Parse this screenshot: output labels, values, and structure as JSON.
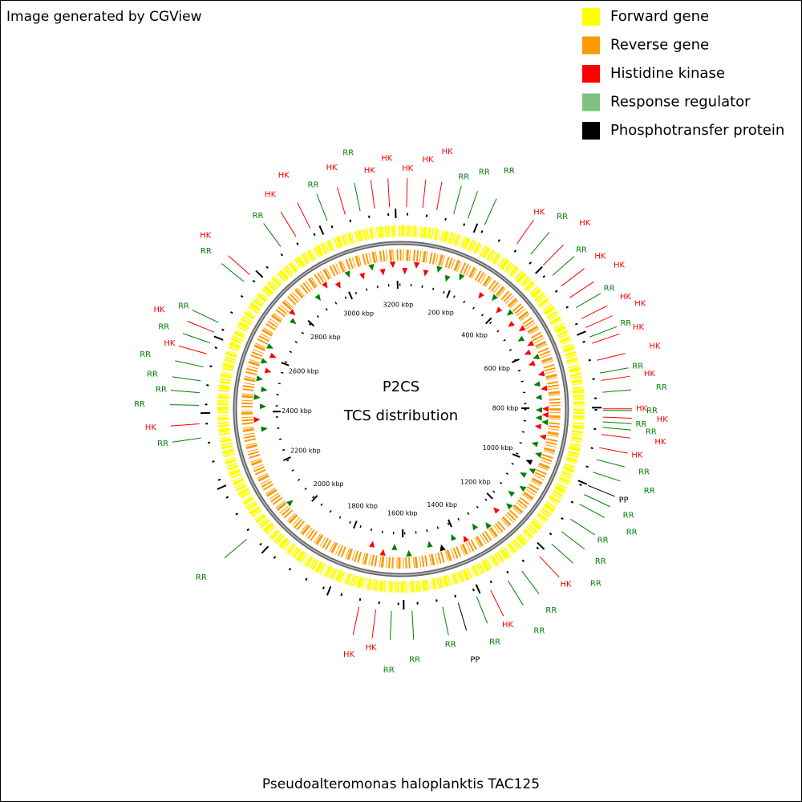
{
  "header": {
    "text": "Image generated by CGView"
  },
  "legend": [
    {
      "label": "Forward gene",
      "color": "#ffff00"
    },
    {
      "label": "Reverse gene",
      "color": "#ff9900"
    },
    {
      "label": "Histidine kinase",
      "color": "#ff0000"
    },
    {
      "label": "Response regulator",
      "color": "#80c080"
    },
    {
      "label": "Phosphotransfer protein",
      "color": "#000000"
    }
  ],
  "center": {
    "title": "P2CS",
    "subtitle": "TCS distribution"
  },
  "footer": "Pseudoalteromonas haloplanktis TAC125",
  "axis": {
    "lim": [
      0,
      3214
    ],
    "ticks": [
      {
        "value": 200,
        "label": "200 kbp"
      },
      {
        "value": 400,
        "label": "400 kbp"
      },
      {
        "value": 600,
        "label": "600 kbp"
      },
      {
        "value": 800,
        "label": "800 kbp"
      },
      {
        "value": 1000,
        "label": "1000 kbp"
      },
      {
        "value": 1200,
        "label": "1200 kbp"
      },
      {
        "value": 1400,
        "label": "1400 kbp"
      },
      {
        "value": 1600,
        "label": "1600 kbp"
      },
      {
        "value": 1800,
        "label": "1800 kbp"
      },
      {
        "value": 2000,
        "label": "2000 kbp"
      },
      {
        "value": 2200,
        "label": "2200 kbp"
      },
      {
        "value": 2400,
        "label": "2400 kbp"
      },
      {
        "value": 2600,
        "label": "2600 kbp"
      },
      {
        "value": 2800,
        "label": "2800 kbp"
      },
      {
        "value": 3000,
        "label": "3000 kbp"
      },
      {
        "value": 3200,
        "label": "3200 kbp"
      }
    ]
  },
  "feature_colors": {
    "HK": "#ff0000",
    "RR": "#008000",
    "PP": "#000000"
  },
  "features": [
    {
      "label": "HK",
      "position": 14
    },
    {
      "label": "HK",
      "position": 55
    },
    {
      "label": "HK",
      "position": 91
    },
    {
      "label": "RR",
      "position": 135
    },
    {
      "label": "RR",
      "position": 173
    },
    {
      "label": "RR",
      "position": 218
    },
    {
      "label": "HK",
      "position": 313
    },
    {
      "label": "RR",
      "position": 357
    },
    {
      "label": "HK",
      "position": 399
    },
    {
      "label": "RR",
      "position": 434
    },
    {
      "label": "HK",
      "position": 469
    },
    {
      "label": "HK",
      "position": 505
    },
    {
      "label": "RR",
      "position": 535
    },
    {
      "label": "HK",
      "position": 566
    },
    {
      "label": "HK",
      "position": 591
    },
    {
      "label": "RR",
      "position": 617
    },
    {
      "label": "HK",
      "position": 634
    },
    {
      "label": "HK",
      "position": 679
    },
    {
      "label": "RR",
      "position": 712
    },
    {
      "label": "HK",
      "position": 731
    },
    {
      "label": "RR",
      "position": 761
    },
    {
      "label": "HK",
      "position": 803
    },
    {
      "label": "RR",
      "position": 807
    },
    {
      "label": "HK",
      "position": 824
    },
    {
      "label": "RR",
      "position": 836
    },
    {
      "label": "RR",
      "position": 850
    },
    {
      "label": "HK",
      "position": 868
    },
    {
      "label": "HK",
      "position": 902
    },
    {
      "label": "RR",
      "position": 933
    },
    {
      "label": "RR",
      "position": 966
    },
    {
      "label": "PP",
      "position": 1002
    },
    {
      "label": "RR",
      "position": 1027
    },
    {
      "label": "RR",
      "position": 1054
    },
    {
      "label": "RR",
      "position": 1098
    },
    {
      "label": "RR",
      "position": 1137
    },
    {
      "label": "RR",
      "position": 1177
    },
    {
      "label": "HK",
      "position": 1221
    },
    {
      "label": "RR",
      "position": 1279
    },
    {
      "label": "RR",
      "position": 1322
    },
    {
      "label": "HK",
      "position": 1372
    },
    {
      "label": "RR",
      "position": 1411
    },
    {
      "label": "PP",
      "position": 1460
    },
    {
      "label": "RR",
      "position": 1501
    },
    {
      "label": "RR",
      "position": 1579
    },
    {
      "label": "RR",
      "position": 1631
    },
    {
      "label": "HK",
      "position": 1671
    },
    {
      "label": "HK",
      "position": 1714
    },
    {
      "label": "RR",
      "position": 2052
    },
    {
      "label": "RR",
      "position": 2337
    },
    {
      "label": "HK",
      "position": 2373
    },
    {
      "label": "RR",
      "position": 2420
    },
    {
      "label": "RR",
      "position": 2452
    },
    {
      "label": "RR",
      "position": 2482
    },
    {
      "label": "RR",
      "position": 2518
    },
    {
      "label": "HK",
      "position": 2552
    },
    {
      "label": "RR",
      "position": 2581
    },
    {
      "label": "HK",
      "position": 2610
    },
    {
      "label": "RR",
      "position": 2637
    },
    {
      "label": "RR",
      "position": 2759
    },
    {
      "label": "HK",
      "position": 2782
    },
    {
      "label": "RR",
      "position": 2888
    },
    {
      "label": "HK",
      "position": 2934
    },
    {
      "label": "HK",
      "position": 2976
    },
    {
      "label": "RR",
      "position": 3023
    },
    {
      "label": "HK",
      "position": 3071
    },
    {
      "label": "RR",
      "position": 3110
    },
    {
      "label": "HK",
      "position": 3147
    },
    {
      "label": "HK",
      "position": 3185
    }
  ]
}
